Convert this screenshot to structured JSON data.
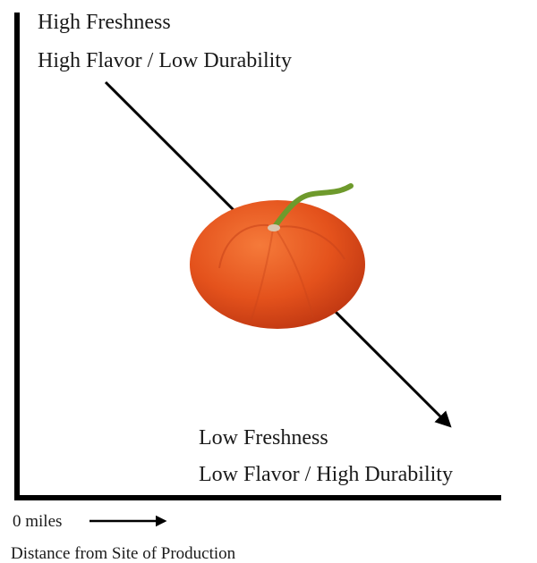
{
  "top_label": {
    "line1": "High Freshness",
    "line2": "High Flavor / Low Durability"
  },
  "bottom_label": {
    "line1": "Low Freshness",
    "line2": "Low Flavor / High Durability"
  },
  "x_axis": {
    "origin_label": "0 miles",
    "title": "Distance from Site of Production"
  }
}
